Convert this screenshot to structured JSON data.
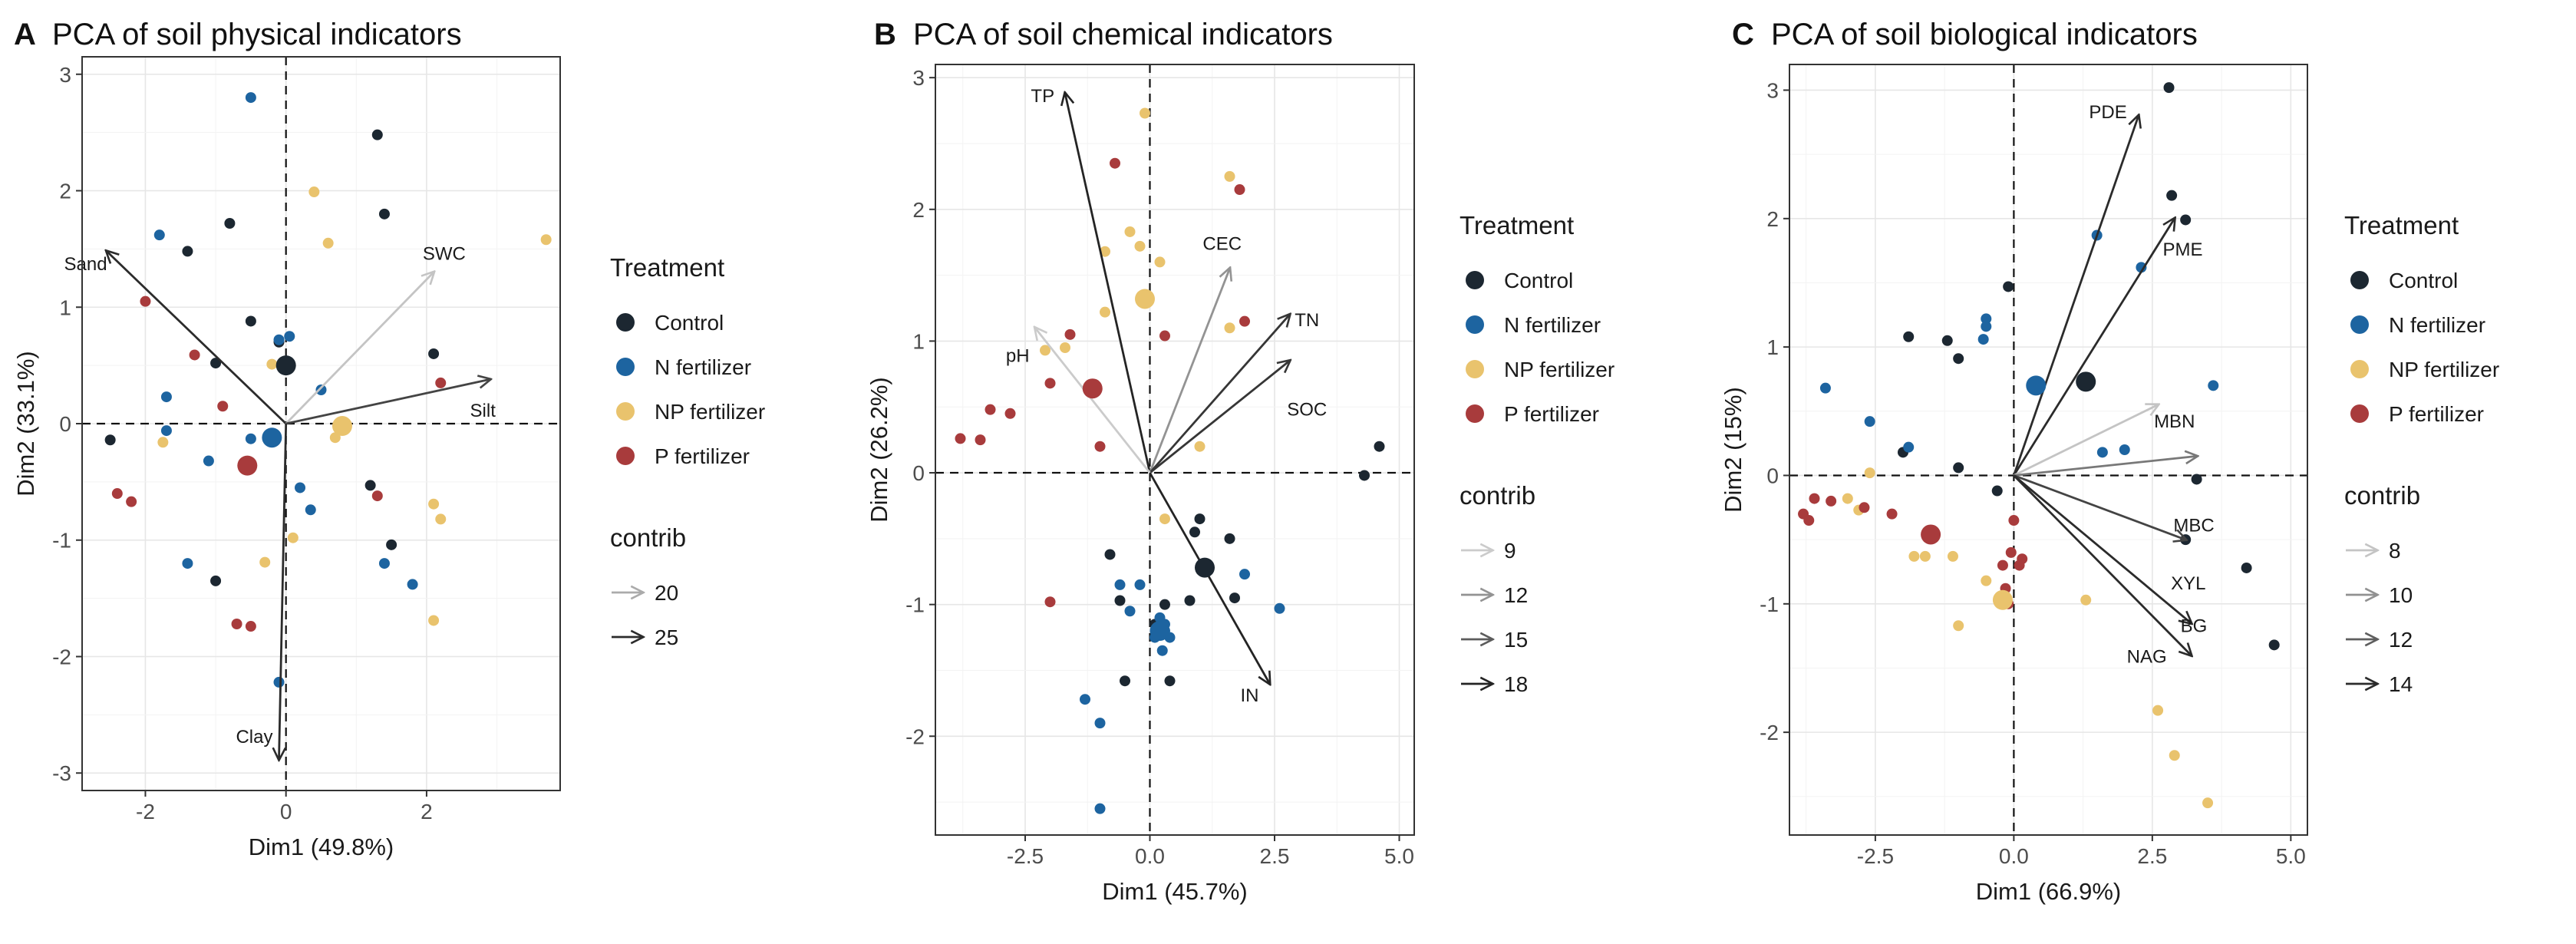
{
  "colors": {
    "Control": "#1c2731",
    "N fertilizer": "#1d64a0",
    "NP fertilizer": "#e9c36d",
    "P fertilizer": "#a83b3c"
  },
  "chart_data": [
    {
      "type": "scatter",
      "panel_letter": "A",
      "title": "PCA of soil physical indicators",
      "xlabel": "Dim1 (49.8%)",
      "ylabel": "Dim2 (33.1%)",
      "xlim": [
        -2.9,
        3.9
      ],
      "ylim": [
        -3.15,
        3.15
      ],
      "xticks": [
        -2,
        0,
        2
      ],
      "xtick_labels": [
        "-2",
        "0",
        "2"
      ],
      "yticks": [
        -3,
        -2,
        -1,
        0,
        1,
        2,
        3
      ],
      "ytick_labels": [
        "-3",
        "-2",
        "-1",
        "0",
        "1",
        "2",
        "3"
      ],
      "legend_treatment_title": "Treatment",
      "legend_treatments": [
        "Control",
        "N fertilizer",
        "NP fertilizer",
        "P fertilizer"
      ],
      "legend_contrib_title": "contrib",
      "legend_contrib": [
        {
          "label": "20",
          "level": 20
        },
        {
          "label": "25",
          "level": 25
        }
      ],
      "contrib_range": [
        18,
        26
      ],
      "vectors": [
        {
          "name": "Sand",
          "x": -2.55,
          "y": 1.48,
          "contrib": 25,
          "label_dx": -0.3,
          "label_dy": -0.12
        },
        {
          "name": "SWC",
          "x": 2.1,
          "y": 1.3,
          "contrib": 19,
          "label_dx": 0.15,
          "label_dy": 0.15
        },
        {
          "name": "Silt",
          "x": 2.9,
          "y": 0.38,
          "contrib": 24,
          "label_dx": -0.1,
          "label_dy": -0.28
        },
        {
          "name": "Clay",
          "x": -0.1,
          "y": -2.88,
          "contrib": 25,
          "label_dx": -0.35,
          "label_dy": 0.18
        }
      ],
      "series": [
        {
          "name": "Control",
          "centroid": [
            0.0,
            0.5
          ],
          "points": [
            [
              1.3,
              2.48
            ],
            [
              -0.8,
              1.72
            ],
            [
              1.4,
              1.8
            ],
            [
              -1.4,
              1.48
            ],
            [
              -0.5,
              0.88
            ],
            [
              -0.1,
              0.7
            ],
            [
              2.1,
              0.6
            ],
            [
              -1.0,
              0.52
            ],
            [
              -2.5,
              -0.14
            ],
            [
              1.2,
              -0.53
            ],
            [
              1.5,
              -1.04
            ],
            [
              -1.0,
              -1.35
            ]
          ]
        },
        {
          "name": "N fertilizer",
          "centroid": [
            -0.2,
            -0.12
          ],
          "points": [
            [
              -0.5,
              2.8
            ],
            [
              -1.8,
              1.62
            ],
            [
              0.05,
              0.75
            ],
            [
              -0.1,
              0.72
            ],
            [
              0.5,
              0.29
            ],
            [
              -1.7,
              0.23
            ],
            [
              -1.7,
              -0.06
            ],
            [
              -0.5,
              -0.13
            ],
            [
              -1.1,
              -0.32
            ],
            [
              0.2,
              -0.55
            ],
            [
              0.35,
              -0.74
            ],
            [
              -1.4,
              -1.2
            ],
            [
              1.4,
              -1.2
            ],
            [
              1.8,
              -1.38
            ],
            [
              -0.1,
              -2.22
            ]
          ]
        },
        {
          "name": "NP fertilizer",
          "centroid": [
            0.8,
            -0.02
          ],
          "points": [
            [
              3.7,
              1.58
            ],
            [
              0.4,
              1.99
            ],
            [
              0.6,
              1.55
            ],
            [
              -0.2,
              0.51
            ],
            [
              0.7,
              -0.12
            ],
            [
              2.1,
              -0.69
            ],
            [
              2.2,
              -0.82
            ],
            [
              0.1,
              -0.98
            ],
            [
              -0.3,
              -1.19
            ],
            [
              -1.75,
              -0.16
            ],
            [
              2.1,
              -1.69
            ]
          ]
        },
        {
          "name": "P fertilizer",
          "centroid": [
            -0.55,
            -0.36
          ],
          "points": [
            [
              -2.0,
              1.05
            ],
            [
              -1.3,
              0.59
            ],
            [
              -0.9,
              0.15
            ],
            [
              2.2,
              0.35
            ],
            [
              1.3,
              -0.62
            ],
            [
              -2.4,
              -0.6
            ],
            [
              -2.2,
              -0.67
            ],
            [
              -0.7,
              -1.72
            ],
            [
              -0.5,
              -1.74
            ]
          ]
        }
      ]
    },
    {
      "type": "scatter",
      "panel_letter": "B",
      "title": "PCA of soil chemical indicators",
      "xlabel": "Dim1 (45.7%)",
      "ylabel": "Dim2 (26.2%)",
      "xlim": [
        -4.3,
        5.3
      ],
      "ylim": [
        -2.75,
        3.1
      ],
      "xticks": [
        -2.5,
        0,
        2.5,
        5
      ],
      "xtick_labels": [
        "-2.5",
        "0.0",
        "2.5",
        "5.0"
      ],
      "yticks": [
        -2,
        -1,
        0,
        1,
        2,
        3
      ],
      "ytick_labels": [
        "-2",
        "-1",
        "0",
        "1",
        "2",
        "3"
      ],
      "legend_treatment_title": "Treatment",
      "legend_treatments": [
        "Control",
        "N fertilizer",
        "NP fertilizer",
        "P fertilizer"
      ],
      "legend_contrib_title": "contrib",
      "legend_contrib": [
        {
          "label": "9",
          "level": 9
        },
        {
          "label": "12",
          "level": 12
        },
        {
          "label": "15",
          "level": 15
        },
        {
          "label": "18",
          "level": 18
        }
      ],
      "contrib_range": [
        8,
        19
      ],
      "vectors": [
        {
          "name": "TP",
          "x": -1.7,
          "y": 2.88,
          "contrib": 18,
          "label_dx": -0.45,
          "label_dy": -0.03
        },
        {
          "name": "CEC",
          "x": 1.6,
          "y": 1.55,
          "contrib": 12,
          "label_dx": -0.15,
          "label_dy": 0.18
        },
        {
          "name": "TN",
          "x": 2.8,
          "y": 1.2,
          "contrib": 17,
          "label_dx": 0.35,
          "label_dy": -0.05
        },
        {
          "name": "SOC",
          "x": 2.8,
          "y": 0.85,
          "contrib": 17,
          "label_dx": 0.35,
          "label_dy": -0.38
        },
        {
          "name": "pH",
          "x": -2.3,
          "y": 1.1,
          "contrib": 9,
          "label_dx": -0.35,
          "label_dy": -0.22
        },
        {
          "name": "IN",
          "x": 2.4,
          "y": -1.6,
          "contrib": 18,
          "label_dx": -0.4,
          "label_dy": -0.1
        }
      ],
      "series": [
        {
          "name": "Control",
          "centroid": [
            1.1,
            -0.72
          ],
          "points": [
            [
              4.6,
              0.2
            ],
            [
              4.3,
              -0.02
            ],
            [
              1.0,
              -0.35
            ],
            [
              0.9,
              -0.45
            ],
            [
              1.6,
              -0.5
            ],
            [
              -0.8,
              -0.62
            ],
            [
              -0.6,
              -0.97
            ],
            [
              0.3,
              -1.0
            ],
            [
              0.8,
              -0.97
            ],
            [
              1.7,
              -0.95
            ],
            [
              0.1,
              -1.15
            ],
            [
              -0.5,
              -1.58
            ],
            [
              0.4,
              -1.58
            ]
          ]
        },
        {
          "name": "N fertilizer",
          "centroid": [
            0.2,
            -1.2
          ],
          "points": [
            [
              -0.6,
              -0.85
            ],
            [
              -0.2,
              -0.85
            ],
            [
              -0.4,
              -1.05
            ],
            [
              1.9,
              -0.77
            ],
            [
              0.2,
              -1.1
            ],
            [
              0.3,
              -1.15
            ],
            [
              0.3,
              -1.2
            ],
            [
              0.4,
              -1.25
            ],
            [
              2.6,
              -1.03
            ],
            [
              0.1,
              -1.25
            ],
            [
              0.25,
              -1.35
            ],
            [
              -1.3,
              -1.72
            ],
            [
              -1.0,
              -1.9
            ],
            [
              -1.0,
              -2.55
            ]
          ]
        },
        {
          "name": "NP fertilizer",
          "centroid": [
            -0.1,
            1.32
          ],
          "points": [
            [
              -0.1,
              2.73
            ],
            [
              1.6,
              2.25
            ],
            [
              -0.4,
              1.83
            ],
            [
              -0.2,
              1.72
            ],
            [
              -0.9,
              1.68
            ],
            [
              0.2,
              1.6
            ],
            [
              -0.9,
              1.22
            ],
            [
              1.6,
              1.1
            ],
            [
              -2.1,
              0.93
            ],
            [
              -1.7,
              0.95
            ],
            [
              1.0,
              0.2
            ],
            [
              0.3,
              -0.35
            ]
          ]
        },
        {
          "name": "P fertilizer",
          "centroid": [
            -1.15,
            0.64
          ],
          "points": [
            [
              -0.7,
              2.35
            ],
            [
              1.8,
              2.15
            ],
            [
              -1.6,
              1.05
            ],
            [
              1.9,
              1.15
            ],
            [
              0.3,
              1.04
            ],
            [
              -2.0,
              0.68
            ],
            [
              -3.2,
              0.48
            ],
            [
              -2.8,
              0.45
            ],
            [
              -3.8,
              0.26
            ],
            [
              -3.4,
              0.25
            ],
            [
              -1.0,
              0.2
            ],
            [
              -2.0,
              -0.98
            ]
          ]
        }
      ]
    },
    {
      "type": "scatter",
      "panel_letter": "C",
      "title": "PCA of soil biological indicators",
      "xlabel": "Dim1 (66.9%)",
      "ylabel": "Dim2 (15%)",
      "xlim": [
        -4.05,
        5.3
      ],
      "ylim": [
        -2.8,
        3.2
      ],
      "xticks": [
        -2.5,
        0,
        2.5,
        5
      ],
      "xtick_labels": [
        "-2.5",
        "0.0",
        "2.5",
        "5.0"
      ],
      "yticks": [
        -2,
        -1,
        0,
        1,
        2,
        3
      ],
      "ytick_labels": [
        "-2",
        "-1",
        "0",
        "1",
        "2",
        "3"
      ],
      "legend_treatment_title": "Treatment",
      "legend_treatments": [
        "Control",
        "N fertilizer",
        "NP fertilizer",
        "P fertilizer"
      ],
      "legend_contrib_title": "contrib",
      "legend_contrib": [
        {
          "label": "8",
          "level": 8
        },
        {
          "label": "10",
          "level": 10
        },
        {
          "label": "12",
          "level": 12
        },
        {
          "label": "14",
          "level": 14
        }
      ],
      "contrib_range": [
        7,
        15
      ],
      "vectors": [
        {
          "name": "PDE",
          "x": 2.25,
          "y": 2.8,
          "contrib": 14,
          "label_dx": -0.55,
          "label_dy": 0.02
        },
        {
          "name": "PME",
          "x": 2.9,
          "y": 2.0,
          "contrib": 14,
          "label_dx": 0.15,
          "label_dy": -0.25
        },
        {
          "name": "MBN",
          "x": 2.6,
          "y": 0.55,
          "contrib": 8,
          "label_dx": 0.3,
          "label_dy": -0.14
        },
        {
          "name": "MBC",
          "x": 3.3,
          "y": 0.15,
          "contrib": 11,
          "label_dx": -0.05,
          "label_dy": -0.55
        },
        {
          "name": "XYL",
          "x": 3.1,
          "y": -0.5,
          "contrib": 13,
          "label_dx": 0.05,
          "label_dy": -0.35
        },
        {
          "name": "BG",
          "x": 3.2,
          "y": -1.15,
          "contrib": 14,
          "label_dx": 0.05,
          "label_dy": -0.03
        },
        {
          "name": "NAG",
          "x": 3.2,
          "y": -1.4,
          "contrib": 14,
          "label_dx": -0.8,
          "label_dy": -0.02
        }
      ],
      "series": [
        {
          "name": "Control",
          "centroid": [
            1.3,
            0.73
          ],
          "points": [
            [
              2.8,
              3.02
            ],
            [
              2.85,
              2.18
            ],
            [
              3.1,
              1.99
            ],
            [
              -0.1,
              1.47
            ],
            [
              -1.9,
              1.08
            ],
            [
              -1.2,
              1.05
            ],
            [
              -1.0,
              0.91
            ],
            [
              -2.0,
              0.18
            ],
            [
              -1.0,
              0.06
            ],
            [
              3.3,
              -0.03
            ],
            [
              -0.3,
              -0.12
            ],
            [
              3.1,
              -0.5
            ],
            [
              4.2,
              -0.72
            ],
            [
              4.7,
              -1.32
            ]
          ]
        },
        {
          "name": "N fertilizer",
          "centroid": [
            0.4,
            0.7
          ],
          "points": [
            [
              -3.4,
              0.68
            ],
            [
              -2.6,
              0.42
            ],
            [
              -1.9,
              0.22
            ],
            [
              1.5,
              1.87
            ],
            [
              2.3,
              1.62
            ],
            [
              -0.5,
              1.22
            ],
            [
              -0.5,
              1.16
            ],
            [
              -0.55,
              1.06
            ],
            [
              3.6,
              0.7
            ],
            [
              1.6,
              0.18
            ],
            [
              2.0,
              0.2
            ]
          ]
        },
        {
          "name": "NP fertilizer",
          "centroid": [
            -0.2,
            -0.97
          ],
          "points": [
            [
              -2.6,
              0.02
            ],
            [
              -3.0,
              -0.18
            ],
            [
              -2.8,
              -0.27
            ],
            [
              -1.8,
              -0.63
            ],
            [
              -1.6,
              -0.63
            ],
            [
              -1.1,
              -0.63
            ],
            [
              -0.5,
              -0.82
            ],
            [
              1.3,
              -0.97
            ],
            [
              -1.0,
              -1.17
            ],
            [
              2.6,
              -1.83
            ],
            [
              2.9,
              -2.18
            ],
            [
              3.5,
              -2.55
            ]
          ]
        },
        {
          "name": "P fertilizer",
          "centroid": [
            -1.5,
            -0.46
          ],
          "points": [
            [
              -3.6,
              -0.18
            ],
            [
              -3.3,
              -0.2
            ],
            [
              -3.8,
              -0.3
            ],
            [
              -3.7,
              -0.35
            ],
            [
              -2.7,
              -0.25
            ],
            [
              -2.2,
              -0.3
            ],
            [
              0.0,
              -0.35
            ],
            [
              -0.05,
              -0.6
            ],
            [
              0.15,
              -0.65
            ],
            [
              0.1,
              -0.7
            ],
            [
              -0.2,
              -0.7
            ],
            [
              -0.15,
              -0.88
            ],
            [
              -0.1,
              -1.0
            ]
          ]
        }
      ]
    }
  ]
}
